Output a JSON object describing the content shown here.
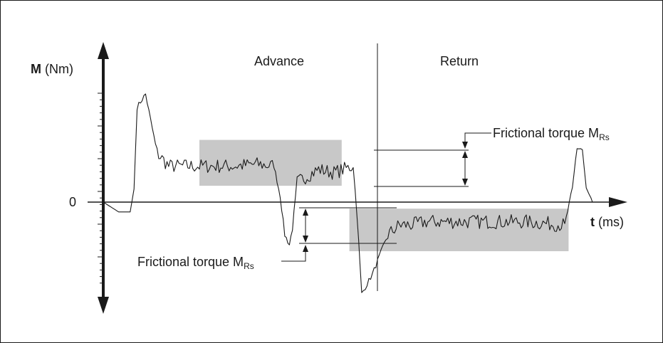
{
  "chart_data": {
    "type": "line",
    "y_axis": {
      "label_bold": "M",
      "label_rest": " (Nm)",
      "zero_tick": "0"
    },
    "x_axis": {
      "label_bold": "t",
      "label_rest": " (ms)"
    },
    "phases": {
      "advance": "Advance",
      "return": "Return"
    },
    "annotations": {
      "friction_upper": {
        "text": "Frictional torque M",
        "sub": "Rs"
      },
      "friction_lower": {
        "text": "Frictional torque M",
        "sub": "Rs"
      }
    },
    "colors": {
      "line": "#1a1a1a",
      "band": "#c8c8c8"
    },
    "series": [
      {
        "x": [
          0,
          2,
          3.5,
          4,
          4.4,
          5.5,
          7,
          8.5,
          11,
          14,
          17,
          20,
          22.2,
          23,
          23.6,
          24.2,
          24.6,
          25.2,
          26.5,
          28,
          30,
          32.5,
          33,
          33.6,
          35,
          37,
          38.5,
          40,
          42,
          45,
          50,
          55,
          60,
          61,
          61.6,
          62.3,
          62.8,
          63.6
        ],
        "y": [
          0,
          -0.15,
          -0.15,
          0.2,
          1.45,
          1.65,
          0.75,
          0.55,
          0.55,
          0.55,
          0.55,
          0.58,
          0.55,
          0.1,
          -0.5,
          -0.65,
          -0.4,
          0.3,
          0.4,
          0.5,
          0.45,
          0.55,
          -0.2,
          -1.4,
          -1.1,
          -0.5,
          -0.35,
          -0.35,
          -0.3,
          -0.3,
          -0.3,
          -0.3,
          -0.35,
          0.2,
          0.85,
          0.8,
          0.2,
          0
        ]
      }
    ],
    "bands": [
      {
        "x": [
          12.5,
          31
        ],
        "y": [
          0.25,
          0.95
        ]
      },
      {
        "x": [
          32,
          60.5
        ],
        "y": [
          -0.75,
          -0.1
        ]
      }
    ]
  }
}
